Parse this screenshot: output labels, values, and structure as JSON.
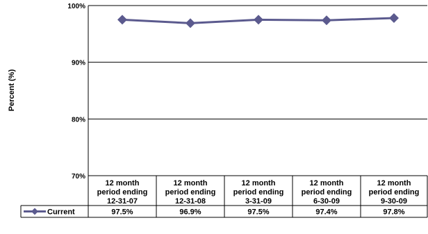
{
  "chart_data": {
    "type": "line",
    "ylabel": "Percent (%)",
    "ylim": [
      70,
      100
    ],
    "yticks": [
      "70%",
      "80%",
      "90%",
      "100%"
    ],
    "ytick_values": [
      70,
      80,
      90,
      100
    ],
    "grid": true,
    "categories": [
      [
        "12 month",
        "period ending",
        "12-31-07"
      ],
      [
        "12 month",
        "period ending",
        "12-31-08"
      ],
      [
        "12 month",
        "period ending",
        "3-31-09"
      ],
      [
        "12 month",
        "period ending",
        "6-30-09"
      ],
      [
        "12 month",
        "period ending",
        "9-30-09"
      ]
    ],
    "series": [
      {
        "name": "Current",
        "color": "#5b5a8e",
        "values": [
          97.5,
          96.9,
          97.5,
          97.4,
          97.8
        ],
        "labels": [
          "97.5%",
          "96.9%",
          "97.5%",
          "97.4%",
          "97.8%"
        ]
      }
    ],
    "data_table": true
  }
}
